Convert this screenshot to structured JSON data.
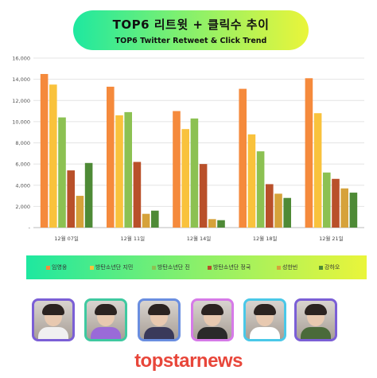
{
  "title": {
    "main": "TOP6 리트윗 + 클릭수 추이",
    "sub": "TOP6 Twitter Retweet & Click Trend"
  },
  "chart_data": {
    "type": "bar",
    "categories": [
      "12월 07일",
      "12월 11일",
      "12월 14일",
      "12월 18일",
      "12월 21일"
    ],
    "ylim": [
      0,
      16000
    ],
    "yticks": [
      0,
      2000,
      4000,
      6000,
      8000,
      10000,
      12000,
      14000,
      16000
    ],
    "ytick_labels": [
      "-",
      "2,000",
      "4,000",
      "6,000",
      "8,000",
      "10,000",
      "12,000",
      "14,000",
      "16,000"
    ],
    "grid": true,
    "legend_position": "bottom",
    "series": [
      {
        "name": "임영웅",
        "color": "#f58a3c",
        "values": [
          14500,
          13300,
          11000,
          13100,
          14100
        ]
      },
      {
        "name": "방탄소년단 지민",
        "color": "#f9c23c",
        "values": [
          13500,
          10600,
          9300,
          8800,
          10800
        ]
      },
      {
        "name": "방탄소년단 진",
        "color": "#8cc152",
        "values": [
          10400,
          10900,
          10300,
          7200,
          5200
        ]
      },
      {
        "name": "방탄소년단 정국",
        "color": "#b9502a",
        "values": [
          5400,
          6200,
          6000,
          4100,
          4600
        ]
      },
      {
        "name": "성한빈",
        "color": "#d6a23a",
        "values": [
          3000,
          1300,
          800,
          3200,
          3700
        ]
      },
      {
        "name": "강하오",
        "color": "#4e8a36",
        "values": [
          6100,
          1600,
          700,
          2800,
          3300
        ]
      }
    ]
  },
  "photos": [
    {
      "border": "#7b5fd6",
      "shirt": "#f0f0f0"
    },
    {
      "border": "#3fc9a0",
      "shirt": "#9a6ad8"
    },
    {
      "border": "#6a8ee0",
      "shirt": "#3a3a5a"
    },
    {
      "border": "#d67ae8",
      "shirt": "#2a2a2a"
    },
    {
      "border": "#4ac8e8",
      "shirt": "#ffffff"
    },
    {
      "border": "#7b5fd6",
      "shirt": "#4a6a3a"
    }
  ],
  "brand": "topstarnews"
}
